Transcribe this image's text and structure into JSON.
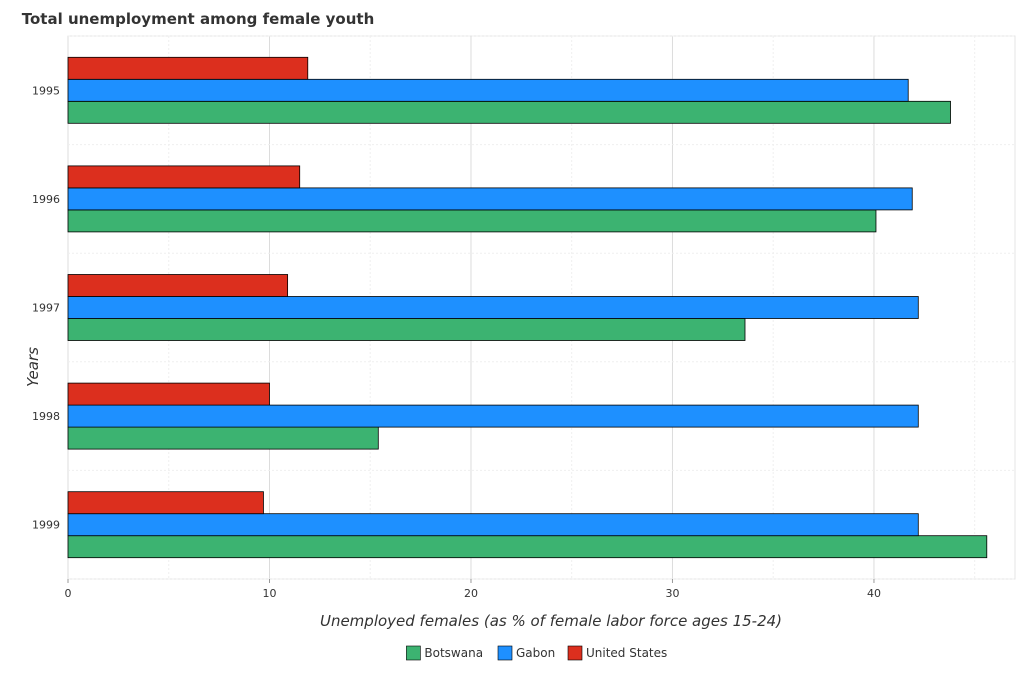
{
  "chart_data": {
    "type": "bar",
    "orientation": "horizontal",
    "title": "Total unemployment among female youth",
    "xlabel": "Unemployed females (as % of female labor force ages 15-24)",
    "ylabel": "Years",
    "categories": [
      "1995",
      "1996",
      "1997",
      "1998",
      "1999"
    ],
    "xlim": [
      0,
      47
    ],
    "xticks": [
      "0",
      "10",
      "20",
      "30",
      "40"
    ],
    "grid": true,
    "legend_position": "bottom",
    "series": [
      {
        "name": "Botswana",
        "color": "#3cb371",
        "values": [
          43.8,
          40.1,
          33.6,
          15.4,
          45.6
        ]
      },
      {
        "name": "Gabon",
        "color": "#1e90ff",
        "values": [
          41.7,
          41.9,
          42.2,
          42.2,
          42.2
        ]
      },
      {
        "name": "United States",
        "color": "#dc2f1e",
        "values": [
          11.9,
          11.5,
          10.9,
          10.0,
          9.7
        ]
      }
    ]
  }
}
